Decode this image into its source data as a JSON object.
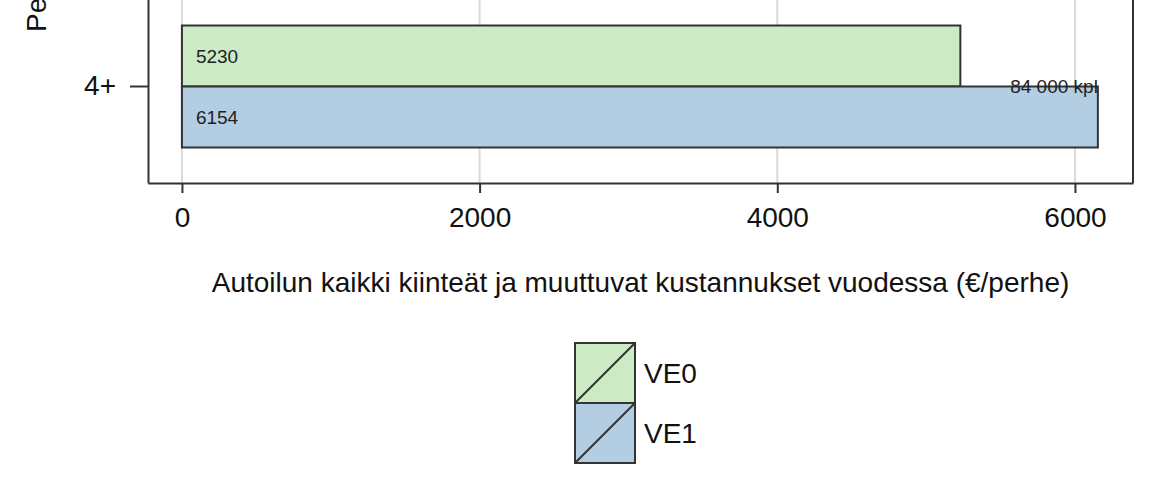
{
  "chart_data": {
    "type": "bar",
    "orientation": "horizontal",
    "categories": [
      "4+"
    ],
    "series": [
      {
        "name": "VE0",
        "color": "#ccebc5",
        "values": [
          5230
        ]
      },
      {
        "name": "VE1",
        "color": "#b3cde3",
        "values": [
          6154
        ]
      }
    ],
    "xlabel": "Autoilun kaikki kiinteät ja muuttuvat kustannukset vuodessa (€/perhe)",
    "ylabel": "Pe",
    "annotations": [
      {
        "text": "84 000 kpl"
      }
    ],
    "xlim": [
      -228,
      6390
    ],
    "xticks": [
      0,
      2000,
      4000,
      6000
    ],
    "grid": true,
    "data_labels": true,
    "legend": "bottom"
  }
}
